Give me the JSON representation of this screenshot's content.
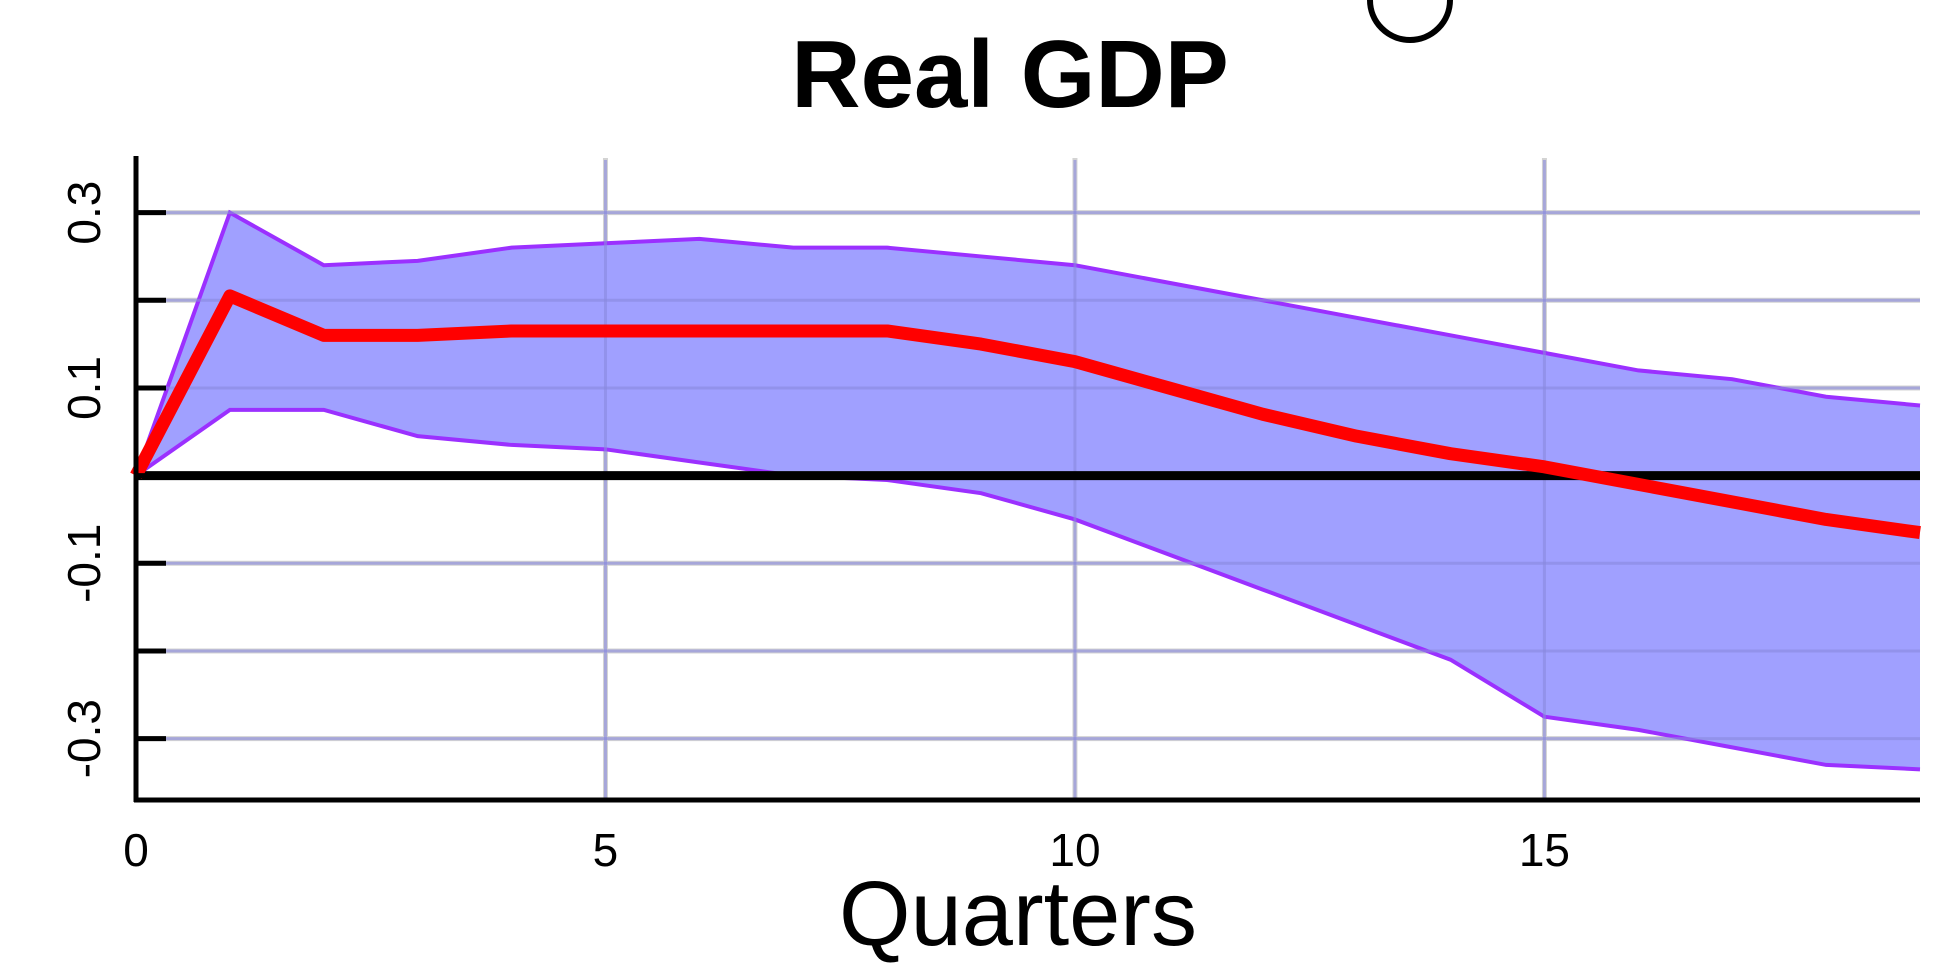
{
  "chart_data": {
    "type": "line",
    "title": "Real GDP",
    "xlabel": "Quarters",
    "ylabel": "",
    "xlim": [
      0,
      19
    ],
    "ylim": [
      -0.37,
      0.36
    ],
    "xticks": [
      0,
      5,
      10,
      15
    ],
    "xtick_labels": [
      "0",
      "5",
      "10",
      "15"
    ],
    "yticks": [
      -0.3,
      -0.2,
      -0.1,
      0.0,
      0.1,
      0.2,
      0.3
    ],
    "ytick_labels": [
      "-0.3",
      "",
      "-0.1",
      "",
      "0.1",
      "",
      "0.3"
    ],
    "grid": true,
    "zero_line": true,
    "x": [
      0,
      1,
      2,
      3,
      4,
      5,
      6,
      7,
      8,
      9,
      10,
      11,
      12,
      13,
      14,
      15,
      16,
      17,
      18,
      19
    ],
    "series": [
      {
        "role": "upper-band",
        "values": [
          0.0,
          0.3,
          0.24,
          0.245,
          0.26,
          0.265,
          0.27,
          0.26,
          0.26,
          0.25,
          0.24,
          0.22,
          0.2,
          0.18,
          0.16,
          0.14,
          0.12,
          0.11,
          0.09,
          0.08
        ]
      },
      {
        "role": "lower-band",
        "values": [
          0.0,
          0.075,
          0.075,
          0.045,
          0.035,
          0.03,
          0.015,
          0.0,
          -0.005,
          -0.02,
          -0.05,
          -0.09,
          -0.13,
          -0.17,
          -0.21,
          -0.275,
          -0.29,
          -0.31,
          -0.33,
          -0.335
        ]
      },
      {
        "role": "impulse-response",
        "values": [
          0.0,
          0.205,
          0.16,
          0.16,
          0.165,
          0.165,
          0.165,
          0.165,
          0.165,
          0.15,
          0.13,
          0.1,
          0.07,
          0.045,
          0.025,
          0.01,
          -0.01,
          -0.03,
          -0.05,
          -0.065
        ]
      }
    ],
    "colors": {
      "band_fill": "#a0a0ff",
      "band_edge": "#9b30ff",
      "line": "#ff0000",
      "zero_line": "#000000",
      "grid": "#d3d3d3",
      "axis": "#000000"
    }
  }
}
